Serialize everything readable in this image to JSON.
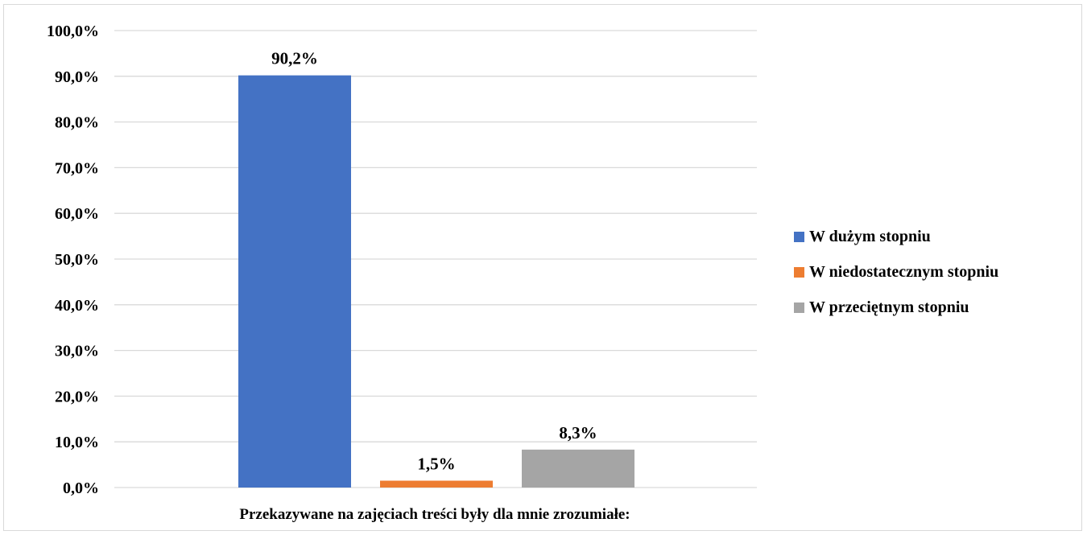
{
  "chart_data": {
    "type": "bar",
    "categories": [
      "Przekazywane na zajęciach treści były dla mnie zrozumiałe:"
    ],
    "series": [
      {
        "name": "W dużym stopniu",
        "values": [
          90.2
        ],
        "label": "90,2%",
        "color": "#4472c4"
      },
      {
        "name": "W niedostatecznym stopniu",
        "values": [
          1.5
        ],
        "label": "1,5%",
        "color": "#ed7d31"
      },
      {
        "name": "W przeciętnym stopniu",
        "values": [
          8.3
        ],
        "label": "8,3%",
        "color": "#a5a5a5"
      }
    ],
    "ylim": [
      0,
      100
    ],
    "yticks": [
      0,
      10,
      20,
      30,
      40,
      50,
      60,
      70,
      80,
      90,
      100
    ],
    "ytick_labels": [
      "0,0%",
      "10,0%",
      "20,0%",
      "30,0%",
      "40,0%",
      "50,0%",
      "60,0%",
      "70,0%",
      "80,0%",
      "90,0%",
      "100,0%"
    ],
    "title": "",
    "xlabel": "",
    "ylabel": "",
    "grid": true,
    "gridline_color": "#d9d9d9",
    "legend_position": "right"
  }
}
